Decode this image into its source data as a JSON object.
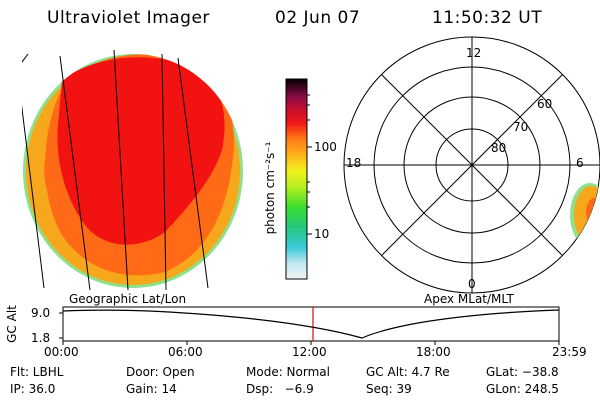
{
  "header": {
    "title": "Ultraviolet Imager",
    "date": "02 Jun 07",
    "time": "11:50:32 UT"
  },
  "colorbar": {
    "unit_label": "photon cm⁻²s⁻¹",
    "tick_100": "100",
    "tick_10": "10"
  },
  "polar_plot": {
    "label_top": "12",
    "label_left": "18",
    "label_right": "6",
    "label_bottom": "0",
    "lat_60": "60",
    "lat_70": "70",
    "lat_80": "80"
  },
  "map_labels": {
    "left_title": "Geographic Lat/Lon",
    "right_title": "Apex MLat/MLT"
  },
  "timeline": {
    "ylabel": "GC Alt",
    "ytick_top": "9.0",
    "ytick_bottom": "1.8",
    "xticks": [
      "00:00",
      "06:00",
      "12:00",
      "18:00",
      "23:59"
    ]
  },
  "info": {
    "filter": "Flt: LBHL",
    "door": "Door: Open",
    "mode": "Mode: Normal",
    "gc_alt": "GC Alt: 4.7 Re",
    "glat": "GLat: −38.8",
    "ip": "IP: 36.0",
    "gain": "Gain: 14",
    "dsp": "Dsp:   −6.9",
    "seq": "Seq: 39",
    "glon": "GLon: 248.5"
  },
  "colors": {
    "disk_outer": "#f7a71b",
    "disk_mid": "#ff6a16",
    "disk_core": "#f21212",
    "timeline_marker": "#d01010"
  }
}
